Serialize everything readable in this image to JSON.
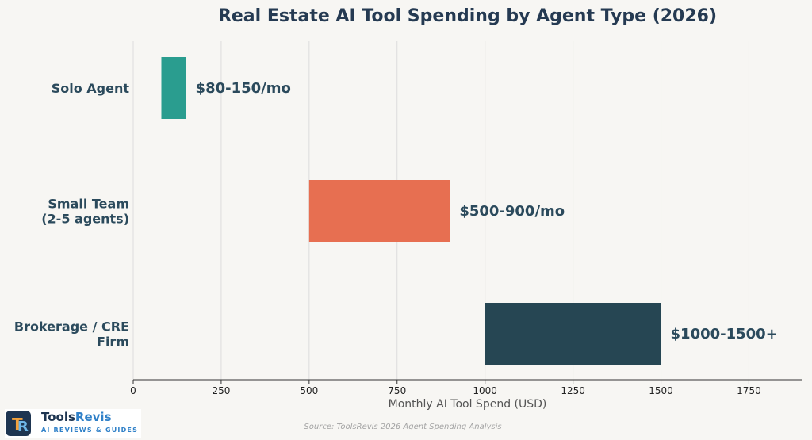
{
  "chart_data": {
    "type": "bar",
    "orientation": "horizontal-range",
    "title": "Real Estate AI Tool Spending by Agent Type (2026)",
    "xlabel": "Monthly AI Tool Spend (USD)",
    "ylabel": "",
    "xlim": [
      0,
      1900
    ],
    "xticks": [
      0,
      250,
      500,
      750,
      1000,
      1250,
      1500,
      1750
    ],
    "grid": "vertical",
    "categories": [
      "Solo Agent",
      "Small Team\n(2-5 agents)",
      "Brokerage / CRE\nFirm"
    ],
    "ranges": [
      {
        "category": "Solo Agent",
        "start": 80,
        "end": 150,
        "label": "$80-150/mo",
        "color": "#2a9d8f"
      },
      {
        "category": "Small Team (2-5 agents)",
        "start": 500,
        "end": 900,
        "label": "$500-900/mo",
        "color": "#e76f51"
      },
      {
        "category": "Brokerage / CRE Firm",
        "start": 1000,
        "end": 1500,
        "label": "$1000-1500+",
        "color": "#264653"
      }
    ]
  },
  "source": "Source: ToolsRevis 2026 Agent Spending Analysis",
  "logo": {
    "name_part1": "Tools",
    "name_part2": "Revis",
    "tagline": "AI REVIEWS & GUIDES"
  }
}
